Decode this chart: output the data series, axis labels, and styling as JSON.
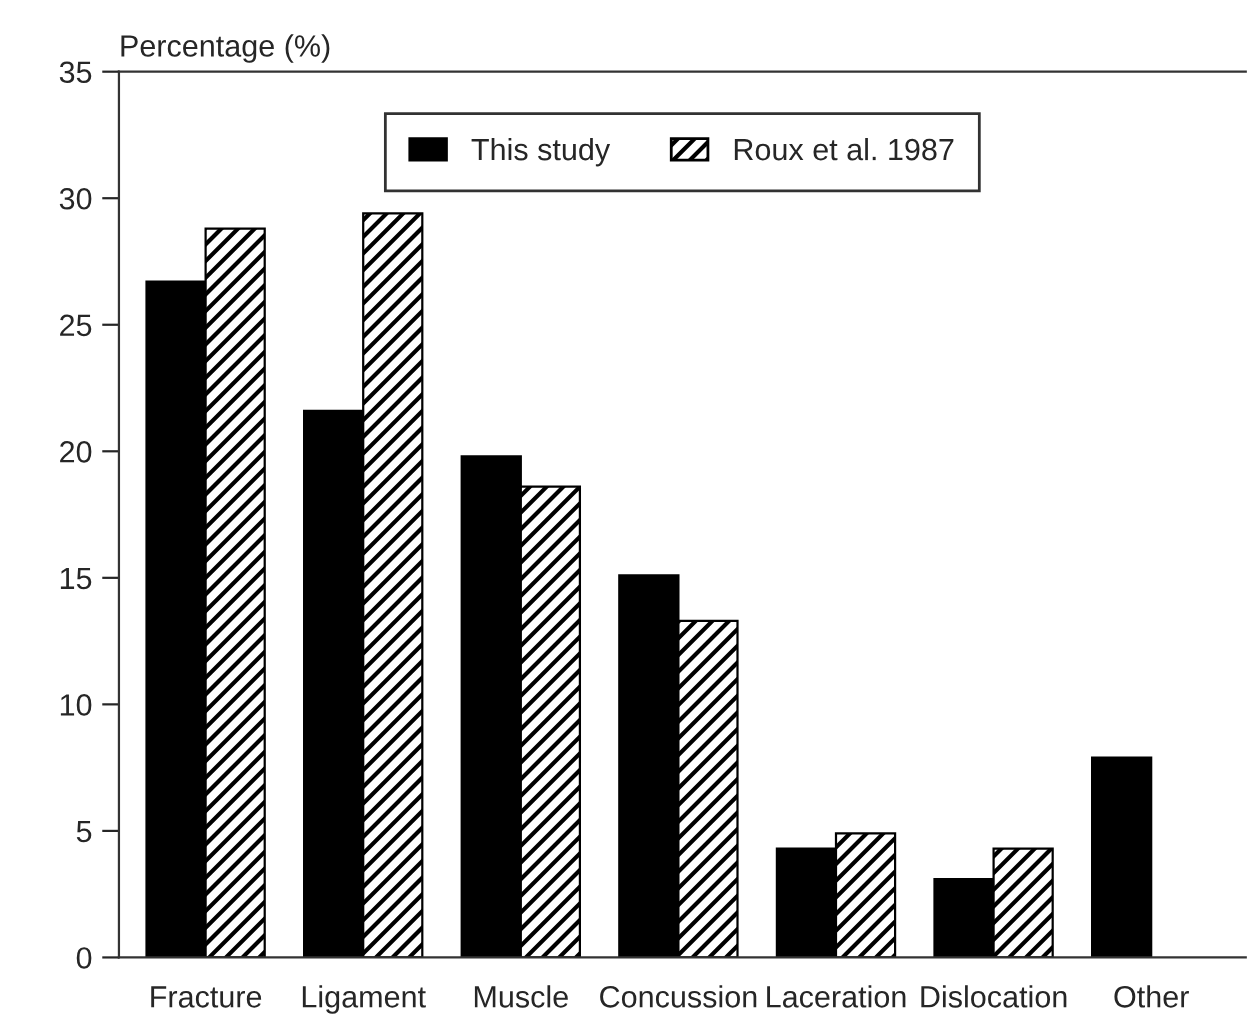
{
  "chart_data": {
    "type": "bar",
    "ylabel": "Percentage (%)",
    "categories": [
      "Fracture",
      "Ligament",
      "Muscle",
      "Concussion",
      "Laceration",
      "Dislocation",
      "Other"
    ],
    "series": [
      {
        "name": "This study",
        "color": "#000000",
        "values": [
          26.7,
          21.6,
          19.8,
          15.1,
          4.3,
          3.1,
          7.9
        ]
      },
      {
        "name": "Roux et al. 1987",
        "color": "#000000",
        "values": [
          28.8,
          29.4,
          18.6,
          13.3,
          4.9,
          4.3,
          null
        ]
      }
    ],
    "ylim": [
      0,
      35
    ],
    "yticks": [
      0,
      5,
      10,
      15,
      20,
      25,
      30,
      35
    ],
    "grid": false,
    "legend": "top"
  }
}
